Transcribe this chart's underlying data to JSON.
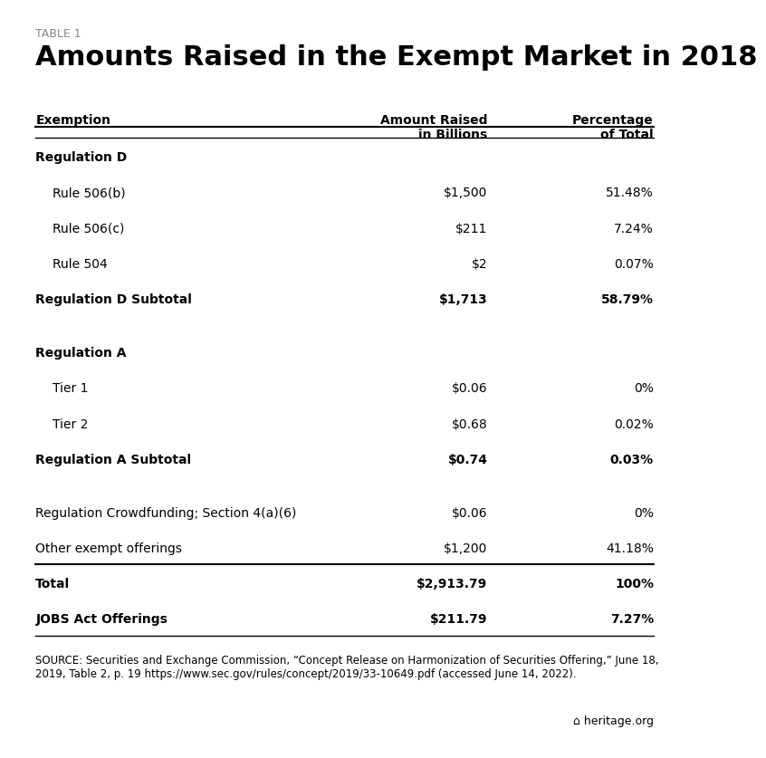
{
  "table_label": "TABLE 1",
  "title": "Amounts Raised in the Exempt Market in 2018",
  "col_headers": [
    "Exemption",
    "Amount Raised\nin Billions",
    "Percentage\nof Total"
  ],
  "rows": [
    {
      "label": "Regulation D",
      "amount": "",
      "pct": "",
      "bold": true,
      "indent": false,
      "section_header": true
    },
    {
      "label": "Rule 506(b)",
      "amount": "$1,500",
      "pct": "51.48%",
      "bold": false,
      "indent": true,
      "section_header": false
    },
    {
      "label": "Rule 506(c)",
      "amount": "$211",
      "pct": "7.24%",
      "bold": false,
      "indent": true,
      "section_header": false
    },
    {
      "label": "Rule 504",
      "amount": "$2",
      "pct": "0.07%",
      "bold": false,
      "indent": true,
      "section_header": false
    },
    {
      "label": "Regulation D Subtotal",
      "amount": "$1,713",
      "pct": "58.79%",
      "bold": true,
      "indent": false,
      "section_header": false
    },
    {
      "label": "",
      "amount": "",
      "pct": "",
      "bold": false,
      "indent": false,
      "section_header": false,
      "spacer": true
    },
    {
      "label": "Regulation A",
      "amount": "",
      "pct": "",
      "bold": true,
      "indent": false,
      "section_header": true
    },
    {
      "label": "Tier 1",
      "amount": "$0.06",
      "pct": "0%",
      "bold": false,
      "indent": true,
      "section_header": false
    },
    {
      "label": "Tier 2",
      "amount": "$0.68",
      "pct": "0.02%",
      "bold": false,
      "indent": true,
      "section_header": false
    },
    {
      "label": "Regulation A Subtotal",
      "amount": "$0.74",
      "pct": "0.03%",
      "bold": true,
      "indent": false,
      "section_header": false
    },
    {
      "label": "",
      "amount": "",
      "pct": "",
      "bold": false,
      "indent": false,
      "section_header": false,
      "spacer": true
    },
    {
      "label": "Regulation Crowdfunding; Section 4(a)(6)",
      "amount": "$0.06",
      "pct": "0%",
      "bold": false,
      "indent": false,
      "section_header": false
    },
    {
      "label": "Other exempt offerings",
      "amount": "$1,200",
      "pct": "41.18%",
      "bold": false,
      "indent": false,
      "section_header": false
    }
  ],
  "total_rows": [
    {
      "label": "Total",
      "amount": "$2,913.79",
      "pct": "100%",
      "bold": true
    },
    {
      "label": "JOBS Act Offerings",
      "amount": "$211.79",
      "pct": "7.27%",
      "bold": true
    }
  ],
  "source_text": "SOURCE: Securities and Exchange Commission, “Concept Release on Harmonization of Securities Offering,” June 18,\n2019, Table 2, p. 19 https://www.sec.gov/rules/concept/2019/33-10649.pdf (accessed June 14, 2022).",
  "heritage_text": "heritage.org",
  "bg_color": "#ffffff",
  "text_color": "#000000",
  "table_label_color": "#888888",
  "line_color": "#000000",
  "title_fontsize": 22,
  "table_label_fontsize": 9,
  "header_fontsize": 10,
  "body_fontsize": 10,
  "source_fontsize": 8.5
}
